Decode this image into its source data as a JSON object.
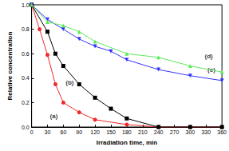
{
  "chart_data": {
    "type": "line",
    "x_label": "Irradiation time, min",
    "y_label": "Relative concentration",
    "xlim": [
      0,
      360
    ],
    "xticks": [
      0,
      30,
      60,
      90,
      120,
      150,
      180,
      210,
      240,
      270,
      300,
      330,
      360
    ],
    "ylim": [
      0,
      1
    ],
    "yticks": [
      {
        "value": 0,
        "label": "0.0"
      },
      0.2,
      0.4,
      0.6,
      0.8,
      {
        "value": 1,
        "label": "1.0"
      }
    ],
    "grid": false,
    "series": [
      {
        "name": "(a)",
        "color": "#f02828",
        "marker": "circle",
        "x": [
          0,
          15,
          30,
          45,
          60,
          90,
          120,
          180,
          240,
          300,
          360
        ],
        "values": [
          1.0,
          0.8,
          0.59,
          0.35,
          0.2,
          0.12,
          0.06,
          0.02,
          0.0,
          0.0,
          0.0
        ]
      },
      {
        "name": "(b)",
        "color": "#000000",
        "marker": "square",
        "x": [
          0,
          30,
          45,
          60,
          90,
          120,
          150,
          180,
          240,
          300,
          360
        ],
        "values": [
          1.0,
          0.78,
          0.6,
          0.5,
          0.35,
          0.24,
          0.15,
          0.07,
          0.0,
          0.0,
          0.0
        ]
      },
      {
        "name": "(c)",
        "color": "#3333ff",
        "marker": "triangle-down",
        "x": [
          0,
          30,
          60,
          90,
          120,
          150,
          180,
          240,
          300,
          360
        ],
        "values": [
          1.0,
          0.88,
          0.8,
          0.72,
          0.66,
          0.62,
          0.55,
          0.47,
          0.42,
          0.38
        ]
      },
      {
        "name": "(d)",
        "color": "#5ee85e",
        "marker": "triangle-up",
        "x": [
          0,
          30,
          60,
          90,
          120,
          180,
          240,
          300,
          360
        ],
        "values": [
          1.0,
          0.86,
          0.83,
          0.78,
          0.7,
          0.6,
          0.57,
          0.5,
          0.45
        ]
      }
    ],
    "annotations": [
      {
        "text": "(a)",
        "x": 42,
        "y": 0.09
      },
      {
        "text": "(b)",
        "x": 72,
        "y": 0.36
      },
      {
        "text": "(c)",
        "x": 340,
        "y": 0.47
      },
      {
        "text": "(d)",
        "x": 335,
        "y": 0.58
      }
    ]
  }
}
